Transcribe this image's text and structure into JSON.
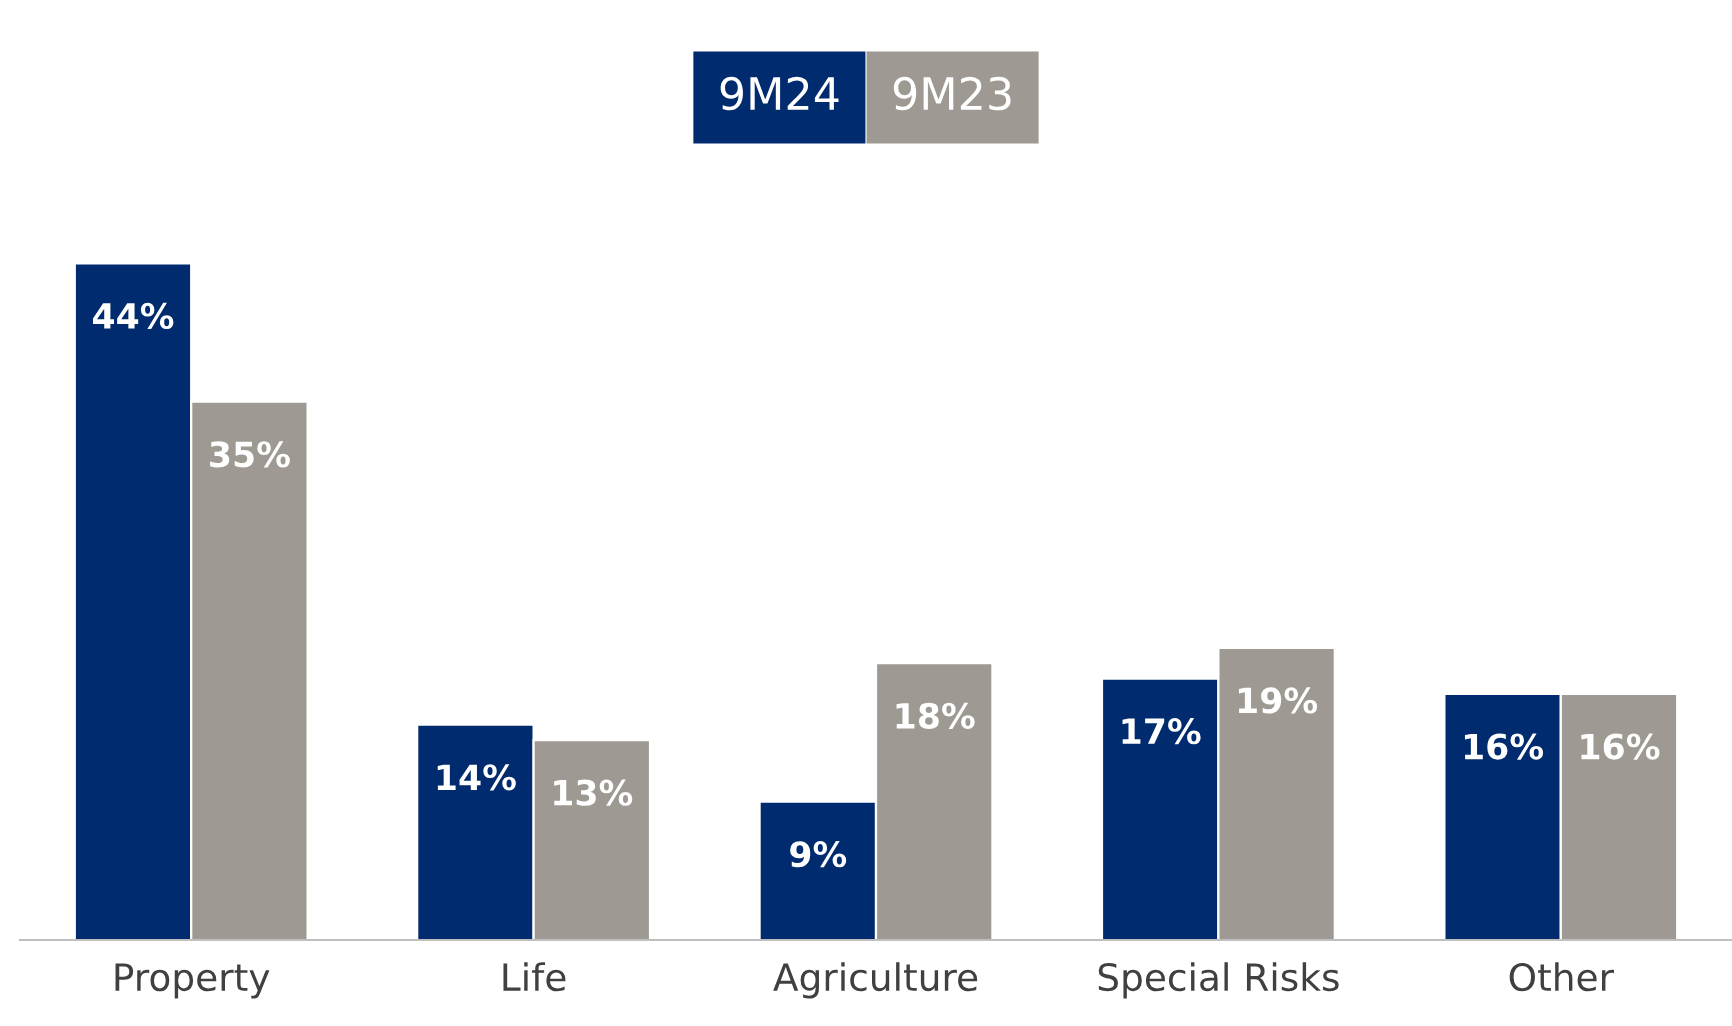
{
  "chart_data": {
    "type": "bar",
    "categories": [
      "Property",
      "Life",
      "Agriculture",
      "Special Risks",
      "Other"
    ],
    "series": [
      {
        "name": "9M24",
        "color": "#002b6e",
        "values": [
          44,
          14,
          9,
          17,
          16
        ],
        "value_labels": [
          "44%",
          "14%",
          "9%",
          "17%",
          "16%"
        ]
      },
      {
        "name": "9M23",
        "color": "#9e9a93",
        "values": [
          35,
          13,
          18,
          19,
          16
        ],
        "value_labels": [
          "35%",
          "13%",
          "18%",
          "19%",
          "16%"
        ]
      }
    ],
    "legend": "top",
    "grid": false,
    "tick_labels": "x"
  }
}
